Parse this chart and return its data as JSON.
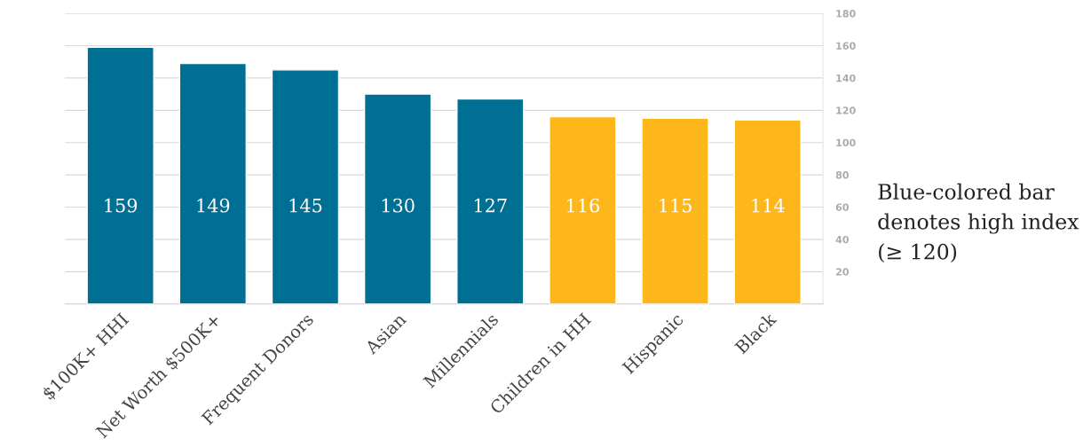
{
  "chart_data": {
    "type": "bar",
    "categories": [
      "$100K+ HHI",
      "Net Worth $500K+",
      "Frequent Donors",
      "Asian",
      "Millennials",
      "Children in HH",
      "Hispanic",
      "Black"
    ],
    "values": [
      159,
      149,
      145,
      130,
      127,
      116,
      115,
      114
    ],
    "colors": [
      "#006f94",
      "#006f94",
      "#006f94",
      "#006f94",
      "#006f94",
      "#fdb71a",
      "#fdb71a",
      "#fdb71a"
    ],
    "ylim": [
      0,
      180
    ],
    "yticks": [
      {
        "value": 0,
        "label": null
      },
      20,
      40,
      60,
      80,
      100,
      120,
      140,
      160,
      180
    ],
    "grid": "y",
    "data_labels": true,
    "legend": false,
    "annotations": [
      "Blue-colored bar denotes high index (≥ 120)"
    ]
  }
}
